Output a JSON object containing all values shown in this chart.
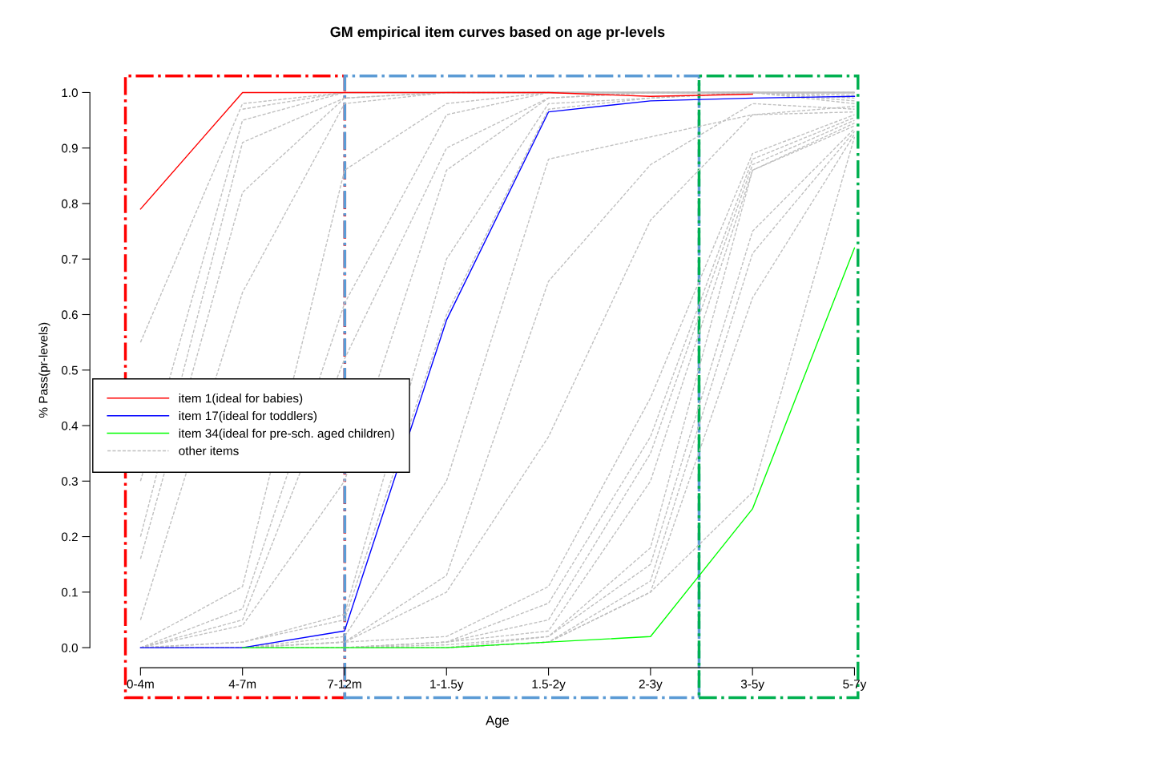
{
  "chart_data": {
    "type": "line",
    "title": "GM empirical item curves based on age pr-levels",
    "xlabel": "Age",
    "ylabel": "% Pass(pr-levels)",
    "categories": [
      "0-4m",
      "4-7m",
      "7-12m",
      "1-1.5y",
      "1.5-2y",
      "2-3y",
      "3-5y",
      "5-7y"
    ],
    "ylim": [
      0,
      1
    ],
    "yticks": [
      {
        "value": 0,
        "label": "0.0"
      },
      0.1,
      0.2,
      0.3,
      0.4,
      0.5,
      0.6,
      0.7,
      0.8,
      0.9,
      {
        "value": 1,
        "label": "1.0"
      }
    ],
    "grid": false,
    "legend": "left",
    "marker": "none",
    "series": [
      {
        "name": "item 1(ideal for babies)",
        "color": "#ff0000",
        "line_style": "solid",
        "values": [
          0.79,
          1.0,
          1.0,
          1.0,
          1.0,
          0.993,
          0.997,
          null
        ]
      },
      {
        "name": "item 17(ideal for toddlers)",
        "color": "#0000ff",
        "line_style": "solid",
        "values": [
          0,
          0,
          0.03,
          0.59,
          0.965,
          0.985,
          0.99,
          0.993
        ]
      },
      {
        "name": "item 34(ideal for pre-sch. aged children)",
        "color": "#00ff00",
        "line_style": "solid",
        "values": [
          null,
          0,
          0,
          0,
          0.01,
          0.02,
          0.25,
          0.72
        ]
      },
      {
        "name": "other items",
        "color": "#c0c0c0",
        "line_style": "dashed",
        "values": [
          0.55,
          0.98,
          1,
          1,
          1,
          1,
          1,
          1
        ]
      },
      {
        "color": "#c0c0c0",
        "line_style": "dashed",
        "values": [
          null,
          0.97,
          1,
          1,
          1,
          1,
          1,
          1
        ]
      },
      {
        "color": "#c0c0c0",
        "line_style": "dashed",
        "values": [
          0.3,
          0.95,
          1,
          1,
          1,
          1,
          1,
          1
        ]
      },
      {
        "color": "#c0c0c0",
        "line_style": "dashed",
        "values": [
          0.2,
          0.91,
          0.99,
          1,
          1,
          1,
          1,
          1
        ]
      },
      {
        "color": "#c0c0c0",
        "line_style": "dashed",
        "values": [
          0.16,
          0.82,
          0.99,
          1,
          1,
          1,
          1,
          1
        ]
      },
      {
        "color": "#c0c0c0",
        "line_style": "dashed",
        "values": [
          0.05,
          0.64,
          0.98,
          1,
          1,
          1,
          1,
          1
        ]
      },
      {
        "color": "#c0c0c0",
        "line_style": "dashed",
        "values": [
          0.01,
          0.11,
          0.86,
          0.98,
          1,
          1,
          1,
          1
        ]
      },
      {
        "color": "#c0c0c0",
        "line_style": "dashed",
        "values": [
          0,
          0.07,
          0.62,
          0.96,
          1,
          1,
          1,
          1
        ]
      },
      {
        "color": "#c0c0c0",
        "line_style": "dashed",
        "values": [
          0,
          0.05,
          0.52,
          0.9,
          0.99,
          1,
          1,
          0.995
        ]
      },
      {
        "color": "#c0c0c0",
        "line_style": "dashed",
        "values": [
          0,
          0.04,
          0.3,
          0.86,
          0.99,
          1,
          1,
          0.99
        ]
      },
      {
        "color": "#c0c0c0",
        "line_style": "dashed",
        "values": [
          0,
          0.01,
          0.06,
          0.7,
          0.98,
          0.99,
          1,
          0.985
        ]
      },
      {
        "color": "#c0c0c0",
        "line_style": "dashed",
        "values": [
          0,
          0.01,
          0.05,
          0.6,
          0.97,
          0.99,
          1,
          0.98
        ]
      },
      {
        "color": "#c0c0c0",
        "line_style": "dashed",
        "values": [
          0,
          0,
          0.02,
          0.3,
          0.88,
          0.92,
          0.96,
          0.975
        ]
      },
      {
        "color": "#c0c0c0",
        "line_style": "dashed",
        "values": [
          0,
          0,
          0.01,
          0.13,
          0.66,
          0.87,
          0.98,
          0.97
        ]
      },
      {
        "color": "#c0c0c0",
        "line_style": "dashed",
        "values": [
          0,
          0,
          0.01,
          0.1,
          0.38,
          0.77,
          0.96,
          0.965
        ]
      },
      {
        "color": "#c0c0c0",
        "line_style": "dashed",
        "values": [
          0,
          0,
          0.01,
          0.02,
          0.11,
          0.45,
          0.89,
          0.96
        ]
      },
      {
        "color": "#c0c0c0",
        "line_style": "dashed",
        "values": [
          0,
          0,
          0,
          0.01,
          0.08,
          0.38,
          0.88,
          0.955
        ]
      },
      {
        "color": "#c0c0c0",
        "line_style": "dashed",
        "values": [
          0,
          0,
          0,
          0.01,
          0.05,
          0.35,
          0.87,
          0.95
        ]
      },
      {
        "color": "#c0c0c0",
        "line_style": "dashed",
        "values": [
          0,
          0,
          0,
          0.01,
          0.03,
          0.3,
          0.86,
          0.945
        ]
      },
      {
        "color": "#c0c0c0",
        "line_style": "dashed",
        "values": [
          0,
          0,
          0,
          0.005,
          0.02,
          0.18,
          0.86,
          0.94
        ]
      },
      {
        "color": "#c0c0c0",
        "line_style": "dashed",
        "values": [
          0,
          0,
          0,
          0,
          0.02,
          0.15,
          0.75,
          0.935
        ]
      },
      {
        "color": "#c0c0c0",
        "line_style": "dashed",
        "values": [
          0,
          0,
          0,
          0,
          0.01,
          0.12,
          0.71,
          0.93
        ]
      },
      {
        "color": "#c0c0c0",
        "line_style": "dashed",
        "values": [
          0,
          0,
          0,
          0,
          0.01,
          0.1,
          0.63,
          0.925
        ]
      },
      {
        "color": "#c0c0c0",
        "line_style": "dashed",
        "values": [
          0,
          0,
          0,
          0,
          0.01,
          0.1,
          0.28,
          0.92
        ]
      }
    ]
  }
}
